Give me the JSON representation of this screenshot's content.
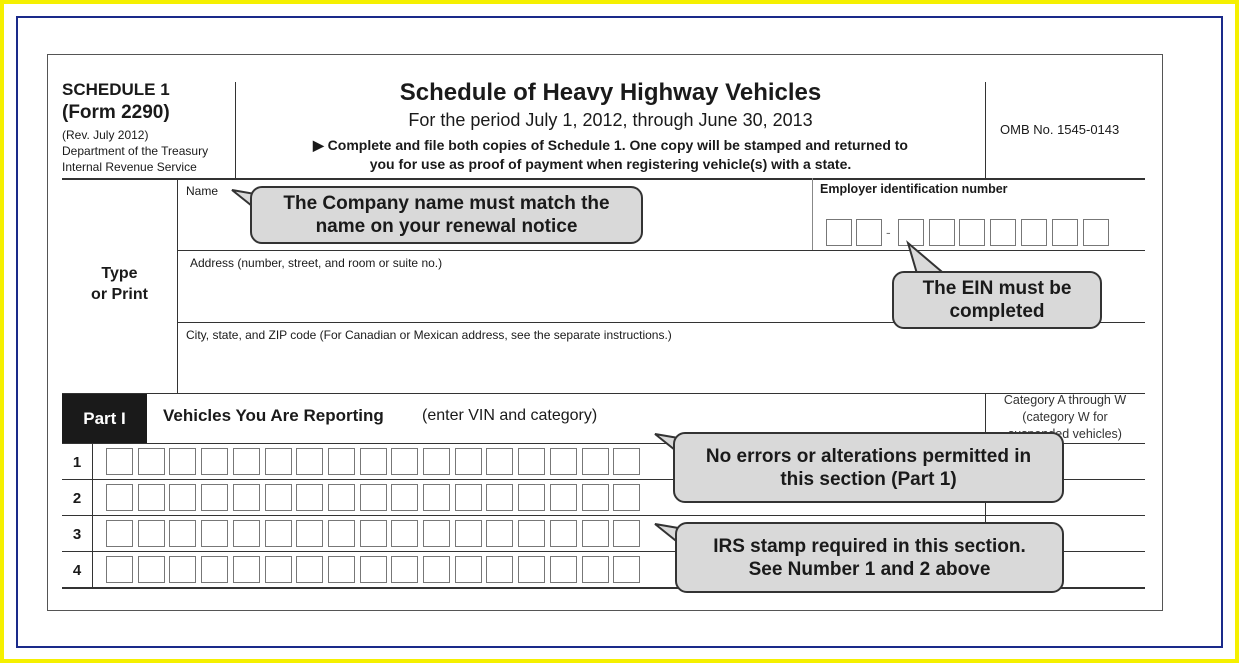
{
  "header": {
    "schedule": "SCHEDULE 1",
    "form": "(Form 2290)",
    "rev": "(Rev. July 2012)",
    "dept": "Department of the Treasury",
    "irs": "Internal Revenue Service",
    "title": "Schedule of Heavy Highway Vehicles",
    "period": "For the period July 1, 2012, through June 30, 2013",
    "instr1": "▶ Complete and file both copies of Schedule 1.  One copy will be stamped and returned to",
    "instr2": "you for use as proof of payment when registering vehicle(s) with a state.",
    "omb": "OMB No. 1545-0143"
  },
  "fields": {
    "type_or_print_1": "Type",
    "type_or_print_2": "or Print",
    "name": "Name",
    "ein": "Employer identification number",
    "ein_dash": "-",
    "address": "Address (number, street, and room or suite no.)",
    "city": "City, state, and ZIP code (For Canadian or Mexican address, see the separate instructions.)"
  },
  "part1": {
    "label": "Part I",
    "title": "Vehicles You Are Reporting",
    "subtitle": "(enter VIN and category)",
    "category1": "Category A through W",
    "category2": "(category W for",
    "category3": "suspended vehicles)",
    "rows": [
      "1",
      "2",
      "3",
      "4"
    ]
  },
  "callouts": {
    "company": [
      "The Company name must match the",
      "name on your renewal notice"
    ],
    "ein": [
      "The EIN must be",
      "completed"
    ],
    "errors": [
      "No errors or alterations permitted in",
      "this section (Part 1)"
    ],
    "stamp": [
      "IRS stamp required in this section.",
      "See Number 1 and 2 above"
    ]
  },
  "colors": {
    "outer_border": "#f5f000",
    "frame_border": "#1a2a8a",
    "callout_fill": "#d9d9d9",
    "part_label_bg": "#1a1a1a"
  }
}
